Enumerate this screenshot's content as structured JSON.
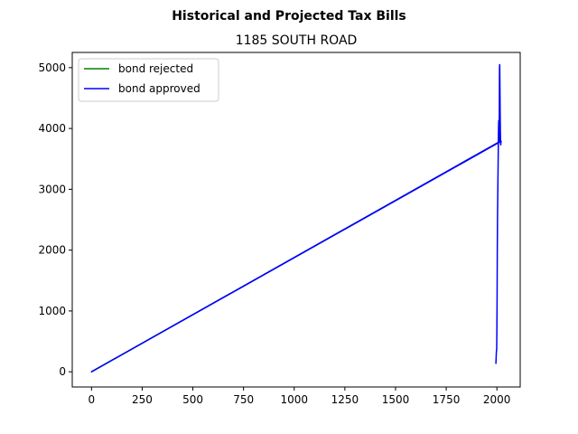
{
  "chart_data": {
    "type": "line",
    "suptitle": "Historical and Projected Tax Bills",
    "title": "1185 SOUTH ROAD",
    "xlabel": "",
    "ylabel": "",
    "xlim": [
      -95,
      2115
    ],
    "ylim": [
      -250,
      5250
    ],
    "xticks": [
      0,
      250,
      500,
      750,
      1000,
      1250,
      1500,
      1750,
      2000
    ],
    "yticks": [
      0,
      1000,
      2000,
      3000,
      4000,
      5000
    ],
    "grid": false,
    "legend_position": "upper-left",
    "series": [
      {
        "name": "bond rejected",
        "color": "#008000",
        "points": [
          [
            0,
            0
          ],
          [
            2012,
            3780
          ],
          [
            2013,
            3900
          ],
          [
            2014,
            4000
          ],
          [
            2015,
            3920
          ],
          [
            2016,
            3850
          ],
          [
            2017,
            3800
          ],
          [
            2018,
            3780
          ],
          [
            2019,
            3760
          ],
          [
            2020,
            3800
          ]
        ]
      },
      {
        "name": "bond approved",
        "color": "#0000ff",
        "points": [
          [
            1995,
            130
          ],
          [
            1996,
            200
          ],
          [
            1997,
            300
          ],
          [
            1998,
            350
          ],
          [
            1999,
            380
          ],
          [
            2000,
            700
          ],
          [
            2001,
            1200
          ],
          [
            2002,
            2000
          ],
          [
            2003,
            2500
          ],
          [
            2004,
            2800
          ],
          [
            2005,
            3100
          ],
          [
            2006,
            3400
          ],
          [
            2007,
            3700
          ],
          [
            2008,
            4000
          ],
          [
            2009,
            4130
          ],
          [
            2010,
            4050
          ],
          [
            2011,
            3800
          ],
          [
            2012,
            4200
          ],
          [
            2013,
            5000
          ],
          [
            2014,
            5050
          ],
          [
            2015,
            4700
          ],
          [
            2016,
            4300
          ],
          [
            2017,
            4000
          ],
          [
            2018,
            3800
          ],
          [
            2019,
            3730
          ],
          [
            2020,
            3780
          ],
          [
            2021,
            3790
          ],
          [
            0,
            0
          ],
          [
            2012,
            3780
          ]
        ]
      }
    ]
  }
}
